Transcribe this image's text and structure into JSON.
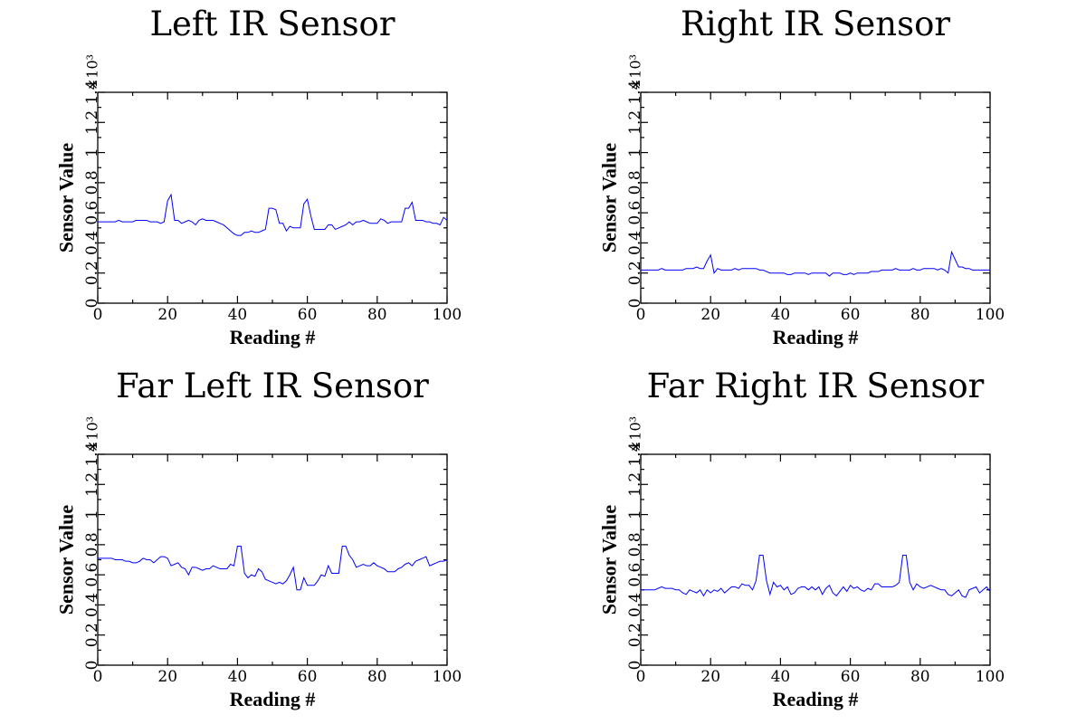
{
  "chart_data": [
    {
      "type": "line",
      "title": "Left IR Sensor",
      "xlabel": "Reading #",
      "ylabel": "Sensor Value",
      "multiplier": "×10³",
      "xlim": [
        0,
        100
      ],
      "ylim": [
        0,
        1.4
      ],
      "xticks": [
        "0",
        "20",
        "40",
        "60",
        "80",
        "100"
      ],
      "yticks": [
        "0",
        "0.2",
        "0.4",
        "0.6",
        "0.8",
        "1",
        "1.2",
        "1.4"
      ],
      "color": "#0000ff",
      "series": [
        {
          "values": [
            0.54,
            0.54,
            0.54,
            0.54,
            0.54,
            0.54,
            0.55,
            0.54,
            0.54,
            0.54,
            0.54,
            0.55,
            0.55,
            0.55,
            0.55,
            0.54,
            0.54,
            0.54,
            0.53,
            0.54,
            0.68,
            0.72,
            0.55,
            0.55,
            0.53,
            0.54,
            0.55,
            0.54,
            0.52,
            0.55,
            0.56,
            0.55,
            0.55,
            0.55,
            0.54,
            0.53,
            0.52,
            0.5,
            0.48,
            0.46,
            0.45,
            0.45,
            0.47,
            0.47,
            0.48,
            0.47,
            0.47,
            0.48,
            0.49,
            0.63,
            0.63,
            0.62,
            0.53,
            0.53,
            0.48,
            0.51,
            0.5,
            0.5,
            0.5,
            0.66,
            0.69,
            0.58,
            0.49,
            0.49,
            0.49,
            0.49,
            0.52,
            0.52,
            0.49,
            0.5,
            0.51,
            0.52,
            0.54,
            0.52,
            0.54,
            0.54,
            0.55,
            0.54,
            0.53,
            0.53,
            0.53,
            0.56,
            0.55,
            0.53,
            0.54,
            0.54,
            0.54,
            0.54,
            0.63,
            0.63,
            0.67,
            0.55,
            0.55,
            0.55,
            0.54,
            0.54,
            0.53,
            0.53,
            0.52,
            0.57,
            0.55
          ]
        }
      ]
    },
    {
      "type": "line",
      "title": "Right IR Sensor",
      "xlabel": "Reading #",
      "ylabel": "Sensor Value",
      "multiplier": "×10³",
      "xlim": [
        0,
        100
      ],
      "ylim": [
        0,
        1.4
      ],
      "xticks": [
        "0",
        "20",
        "40",
        "60",
        "80",
        "100"
      ],
      "yticks": [
        "0",
        "0.2",
        "0.4",
        "0.6",
        "0.8",
        "1",
        "1.2",
        "1.4"
      ],
      "color": "#0000ff",
      "series": [
        {
          "values": [
            0.22,
            0.22,
            0.22,
            0.22,
            0.22,
            0.22,
            0.23,
            0.22,
            0.22,
            0.22,
            0.22,
            0.22,
            0.22,
            0.23,
            0.23,
            0.23,
            0.24,
            0.23,
            0.23,
            0.28,
            0.32,
            0.2,
            0.23,
            0.22,
            0.22,
            0.22,
            0.22,
            0.23,
            0.22,
            0.23,
            0.23,
            0.23,
            0.23,
            0.23,
            0.22,
            0.22,
            0.21,
            0.2,
            0.2,
            0.2,
            0.2,
            0.2,
            0.19,
            0.19,
            0.2,
            0.2,
            0.2,
            0.2,
            0.19,
            0.2,
            0.2,
            0.2,
            0.2,
            0.2,
            0.18,
            0.2,
            0.2,
            0.2,
            0.19,
            0.19,
            0.2,
            0.19,
            0.2,
            0.2,
            0.2,
            0.2,
            0.21,
            0.21,
            0.21,
            0.22,
            0.22,
            0.22,
            0.22,
            0.23,
            0.22,
            0.22,
            0.22,
            0.22,
            0.23,
            0.22,
            0.22,
            0.23,
            0.23,
            0.23,
            0.23,
            0.22,
            0.23,
            0.22,
            0.2,
            0.34,
            0.29,
            0.24,
            0.24,
            0.23,
            0.23,
            0.22,
            0.22,
            0.22,
            0.22,
            0.22,
            0.22
          ]
        }
      ]
    },
    {
      "type": "line",
      "title": "Far Left IR Sensor",
      "xlabel": "Reading #",
      "ylabel": "Sensor Value",
      "multiplier": "×10³",
      "xlim": [
        0,
        100
      ],
      "ylim": [
        0,
        1.4
      ],
      "xticks": [
        "0",
        "20",
        "40",
        "60",
        "80",
        "100"
      ],
      "yticks": [
        "0",
        "0.2",
        "0.4",
        "0.6",
        "0.8",
        "1",
        "1.2",
        "1.4"
      ],
      "color": "#0000ff",
      "series": [
        {
          "values": [
            0.71,
            0.71,
            0.71,
            0.71,
            0.71,
            0.7,
            0.7,
            0.7,
            0.69,
            0.69,
            0.68,
            0.68,
            0.69,
            0.71,
            0.7,
            0.7,
            0.68,
            0.7,
            0.72,
            0.72,
            0.71,
            0.66,
            0.67,
            0.68,
            0.65,
            0.64,
            0.6,
            0.65,
            0.65,
            0.64,
            0.63,
            0.64,
            0.64,
            0.66,
            0.65,
            0.64,
            0.64,
            0.64,
            0.67,
            0.66,
            0.79,
            0.79,
            0.61,
            0.58,
            0.6,
            0.59,
            0.64,
            0.62,
            0.57,
            0.56,
            0.55,
            0.54,
            0.55,
            0.54,
            0.56,
            0.6,
            0.65,
            0.5,
            0.5,
            0.58,
            0.53,
            0.53,
            0.53,
            0.56,
            0.6,
            0.59,
            0.66,
            0.61,
            0.61,
            0.61,
            0.79,
            0.79,
            0.73,
            0.7,
            0.65,
            0.66,
            0.67,
            0.66,
            0.66,
            0.68,
            0.66,
            0.65,
            0.64,
            0.62,
            0.62,
            0.62,
            0.64,
            0.65,
            0.67,
            0.68,
            0.66,
            0.69,
            0.7,
            0.71,
            0.72,
            0.66,
            0.67,
            0.68,
            0.69,
            0.69,
            0.7
          ]
        }
      ]
    },
    {
      "type": "line",
      "title": "Far Right IR Sensor",
      "xlabel": "Reading #",
      "ylabel": "Sensor Value",
      "multiplier": "×10³",
      "xlim": [
        0,
        100
      ],
      "ylim": [
        0,
        1.4
      ],
      "xticks": [
        "0",
        "20",
        "40",
        "60",
        "80",
        "100"
      ],
      "yticks": [
        "0",
        "0.2",
        "0.4",
        "0.6",
        "0.8",
        "1",
        "1.2",
        "1.4"
      ],
      "color": "#0000ff",
      "series": [
        {
          "values": [
            0.5,
            0.5,
            0.5,
            0.5,
            0.5,
            0.51,
            0.52,
            0.51,
            0.51,
            0.51,
            0.5,
            0.5,
            0.48,
            0.47,
            0.5,
            0.49,
            0.48,
            0.5,
            0.46,
            0.5,
            0.48,
            0.5,
            0.49,
            0.51,
            0.48,
            0.5,
            0.52,
            0.52,
            0.51,
            0.54,
            0.53,
            0.53,
            0.5,
            0.56,
            0.73,
            0.73,
            0.56,
            0.47,
            0.55,
            0.52,
            0.53,
            0.5,
            0.52,
            0.47,
            0.48,
            0.51,
            0.52,
            0.52,
            0.5,
            0.52,
            0.5,
            0.52,
            0.47,
            0.51,
            0.53,
            0.48,
            0.46,
            0.49,
            0.52,
            0.49,
            0.53,
            0.51,
            0.52,
            0.5,
            0.49,
            0.51,
            0.5,
            0.54,
            0.54,
            0.52,
            0.52,
            0.52,
            0.52,
            0.53,
            0.55,
            0.73,
            0.73,
            0.55,
            0.5,
            0.54,
            0.52,
            0.51,
            0.52,
            0.53,
            0.52,
            0.51,
            0.5,
            0.5,
            0.47,
            0.46,
            0.48,
            0.5,
            0.46,
            0.45,
            0.5,
            0.51,
            0.52,
            0.48,
            0.5,
            0.52,
            0.49
          ]
        }
      ]
    }
  ]
}
